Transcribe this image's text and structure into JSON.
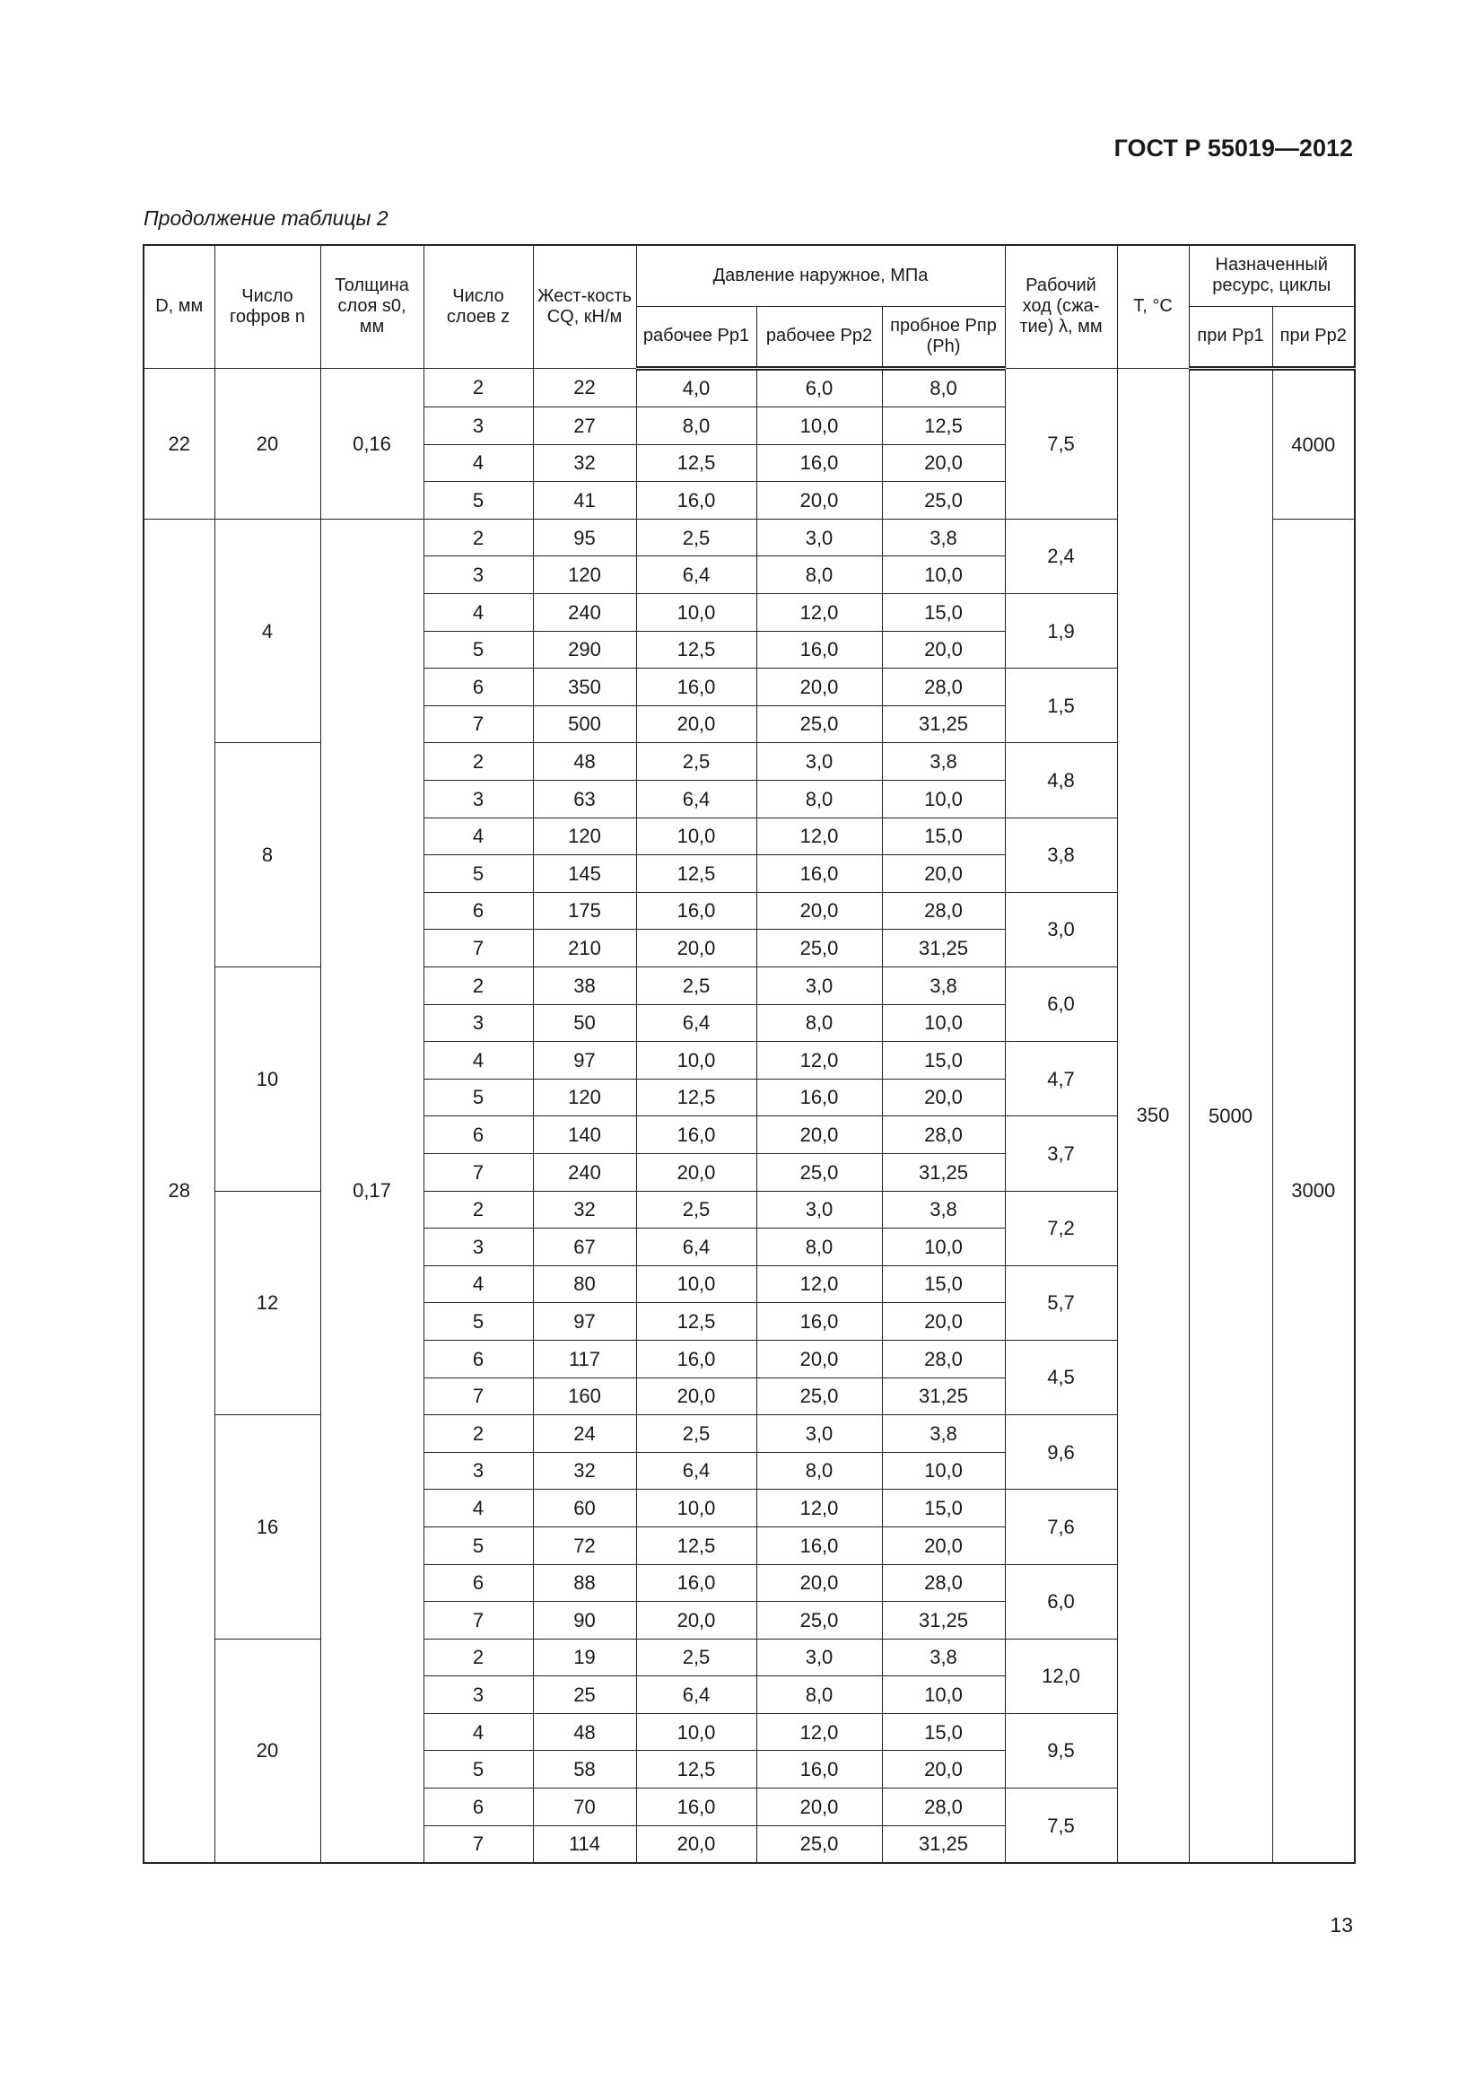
{
  "doc_code": "ГОСТ Р 55019—2012",
  "caption": "Продолжение таблицы 2",
  "page_number": "13",
  "header": {
    "d": "D, мм",
    "n": "Число гофров n",
    "s0": "Толщина слоя s0, мм",
    "z": "Число слоев z",
    "cq": "Жест-кость CQ, кН/м",
    "pressure": "Давление наружное, МПа",
    "pp1": "рабочее Pp1",
    "pp2": "рабочее Pp2",
    "ppr": "пробное Pпр (Ph)",
    "lambda": "Рабочий ход (сжа-тие) λ, мм",
    "t": "T, °C",
    "resource": "Назначенный ресурс, циклы",
    "r1": "при Pp1",
    "r2": "при Pp2"
  },
  "table": {
    "t": "350",
    "resource_p1": "5000",
    "diameters": [
      {
        "d": "22",
        "s0": "0,16",
        "resource_p2": "4000",
        "n_groups": [
          {
            "n": "20",
            "rows": [
              [
                "2",
                "22",
                "4,0",
                "6,0",
                "8,0"
              ],
              [
                "3",
                "27",
                "8,0",
                "10,0",
                "12,5"
              ],
              [
                "4",
                "32",
                "12,5",
                "16,0",
                "20,0"
              ],
              [
                "5",
                "41",
                "16,0",
                "20,0",
                "25,0"
              ]
            ],
            "lambda": [
              {
                "value": "7,5",
                "span": 4
              }
            ]
          }
        ]
      },
      {
        "d": "28",
        "s0": "0,17",
        "resource_p2": "3000",
        "n_groups": [
          {
            "n": "4",
            "rows": [
              [
                "2",
                "95",
                "2,5",
                "3,0",
                "3,8"
              ],
              [
                "3",
                "120",
                "6,4",
                "8,0",
                "10,0"
              ],
              [
                "4",
                "240",
                "10,0",
                "12,0",
                "15,0"
              ],
              [
                "5",
                "290",
                "12,5",
                "16,0",
                "20,0"
              ],
              [
                "6",
                "350",
                "16,0",
                "20,0",
                "28,0"
              ],
              [
                "7",
                "500",
                "20,0",
                "25,0",
                "31,25"
              ]
            ],
            "lambda": [
              {
                "value": "2,4",
                "span": 2
              },
              {
                "value": "1,9",
                "span": 2
              },
              {
                "value": "1,5",
                "span": 2
              }
            ]
          },
          {
            "n": "8",
            "rows": [
              [
                "2",
                "48",
                "2,5",
                "3,0",
                "3,8"
              ],
              [
                "3",
                "63",
                "6,4",
                "8,0",
                "10,0"
              ],
              [
                "4",
                "120",
                "10,0",
                "12,0",
                "15,0"
              ],
              [
                "5",
                "145",
                "12,5",
                "16,0",
                "20,0"
              ],
              [
                "6",
                "175",
                "16,0",
                "20,0",
                "28,0"
              ],
              [
                "7",
                "210",
                "20,0",
                "25,0",
                "31,25"
              ]
            ],
            "lambda": [
              {
                "value": "4,8",
                "span": 2
              },
              {
                "value": "3,8",
                "span": 2
              },
              {
                "value": "3,0",
                "span": 2
              }
            ]
          },
          {
            "n": "10",
            "rows": [
              [
                "2",
                "38",
                "2,5",
                "3,0",
                "3,8"
              ],
              [
                "3",
                "50",
                "6,4",
                "8,0",
                "10,0"
              ],
              [
                "4",
                "97",
                "10,0",
                "12,0",
                "15,0"
              ],
              [
                "5",
                "120",
                "12,5",
                "16,0",
                "20,0"
              ],
              [
                "6",
                "140",
                "16,0",
                "20,0",
                "28,0"
              ],
              [
                "7",
                "240",
                "20,0",
                "25,0",
                "31,25"
              ]
            ],
            "lambda": [
              {
                "value": "6,0",
                "span": 2
              },
              {
                "value": "4,7",
                "span": 2
              },
              {
                "value": "3,7",
                "span": 2
              }
            ]
          },
          {
            "n": "12",
            "rows": [
              [
                "2",
                "32",
                "2,5",
                "3,0",
                "3,8"
              ],
              [
                "3",
                "67",
                "6,4",
                "8,0",
                "10,0"
              ],
              [
                "4",
                "80",
                "10,0",
                "12,0",
                "15,0"
              ],
              [
                "5",
                "97",
                "12,5",
                "16,0",
                "20,0"
              ],
              [
                "6",
                "117",
                "16,0",
                "20,0",
                "28,0"
              ],
              [
                "7",
                "160",
                "20,0",
                "25,0",
                "31,25"
              ]
            ],
            "lambda": [
              {
                "value": "7,2",
                "span": 2
              },
              {
                "value": "5,7",
                "span": 2
              },
              {
                "value": "4,5",
                "span": 2
              }
            ]
          },
          {
            "n": "16",
            "rows": [
              [
                "2",
                "24",
                "2,5",
                "3,0",
                "3,8"
              ],
              [
                "3",
                "32",
                "6,4",
                "8,0",
                "10,0"
              ],
              [
                "4",
                "60",
                "10,0",
                "12,0",
                "15,0"
              ],
              [
                "5",
                "72",
                "12,5",
                "16,0",
                "20,0"
              ],
              [
                "6",
                "88",
                "16,0",
                "20,0",
                "28,0"
              ],
              [
                "7",
                "90",
                "20,0",
                "25,0",
                "31,25"
              ]
            ],
            "lambda": [
              {
                "value": "9,6",
                "span": 2
              },
              {
                "value": "7,6",
                "span": 2
              },
              {
                "value": "6,0",
                "span": 2
              }
            ]
          },
          {
            "n": "20",
            "rows": [
              [
                "2",
                "19",
                "2,5",
                "3,0",
                "3,8"
              ],
              [
                "3",
                "25",
                "6,4",
                "8,0",
                "10,0"
              ],
              [
                "4",
                "48",
                "10,0",
                "12,0",
                "15,0"
              ],
              [
                "5",
                "58",
                "12,5",
                "16,0",
                "20,0"
              ],
              [
                "6",
                "70",
                "16,0",
                "20,0",
                "28,0"
              ],
              [
                "7",
                "114",
                "20,0",
                "25,0",
                "31,25"
              ]
            ],
            "lambda": [
              {
                "value": "12,0",
                "span": 2
              },
              {
                "value": "9,5",
                "span": 2
              },
              {
                "value": "7,5",
                "span": 2
              }
            ]
          }
        ]
      }
    ]
  }
}
